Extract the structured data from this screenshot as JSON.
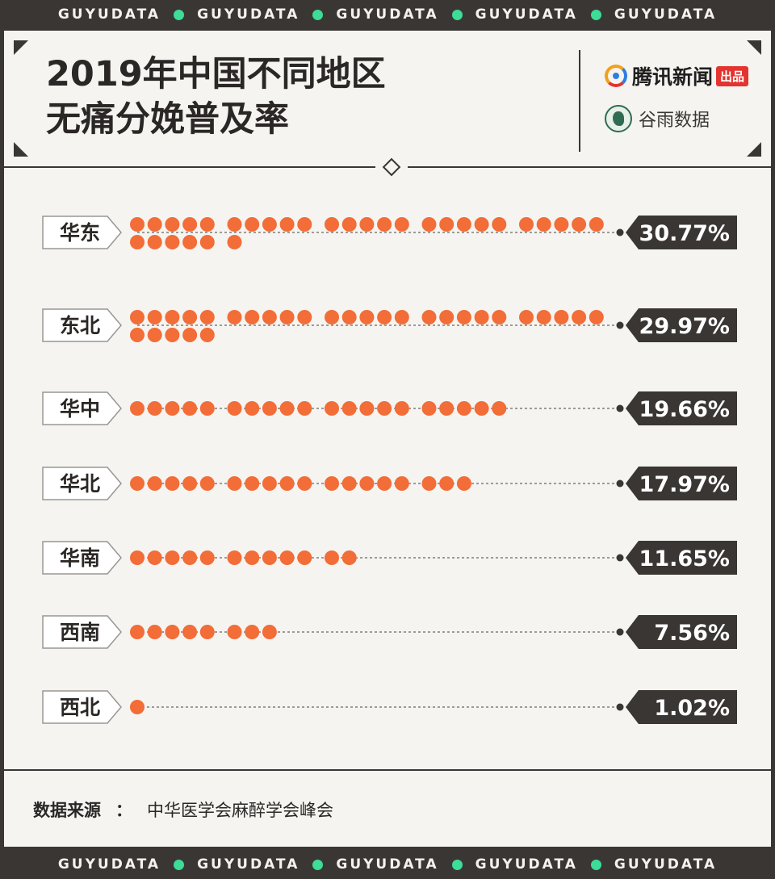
{
  "band_word": "GUYUDATA",
  "title_line1": "2019年中国不同地区",
  "title_line2": "无痛分娩普及率",
  "logos": {
    "tencent": "腾讯新闻",
    "tencent_badge": "出品",
    "guyu": "谷雨数据",
    "guyu_sub": "GUYUDATA"
  },
  "source_label": "数据来源",
  "source_sep": "：",
  "source_text": "中华医学会麻醉学会峰会",
  "colors": {
    "dot": "#f26d37",
    "dark": "#3a3634",
    "accent_green": "#3ddc97"
  },
  "chart_data": {
    "type": "bar",
    "unit_per_dot": 1,
    "categories": [
      "华东",
      "东北",
      "华中",
      "华北",
      "华南",
      "西南",
      "西北"
    ],
    "values": [
      30.77,
      29.97,
      19.66,
      17.97,
      11.65,
      7.56,
      1.02
    ],
    "labels": [
      "30.77%",
      "29.97%",
      "19.66%",
      "17.97%",
      "11.65%",
      "7.56%",
      "1.02%"
    ]
  }
}
